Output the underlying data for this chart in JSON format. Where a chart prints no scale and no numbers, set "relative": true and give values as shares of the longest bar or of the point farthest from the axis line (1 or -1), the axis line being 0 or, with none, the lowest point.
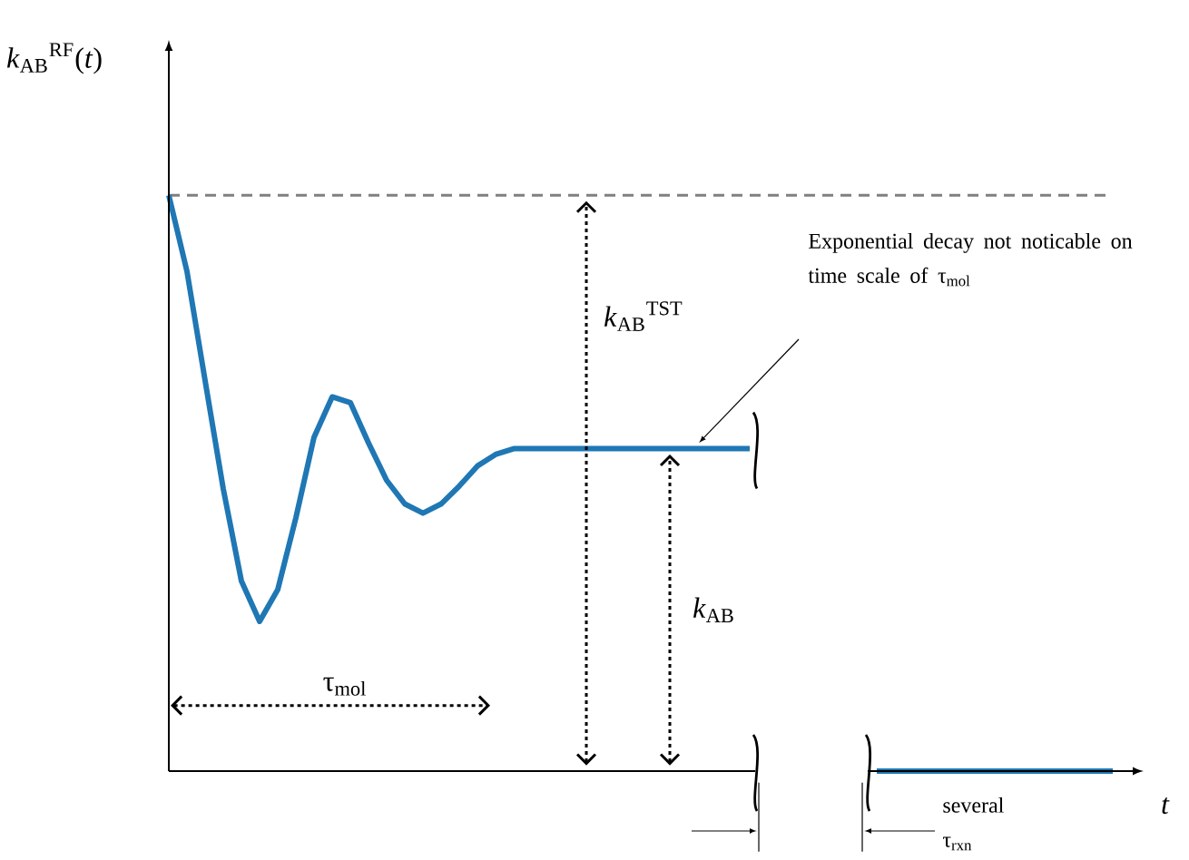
{
  "chart_data": {
    "type": "line",
    "relative": true,
    "xlabel": "*t*",
    "ylabel": "*k*$_{AB}$$^{RF}$(*t*)",
    "categories": [
      null,
      null,
      null,
      null,
      null,
      null,
      null,
      null,
      null,
      null,
      null,
      null,
      null,
      null,
      null,
      null,
      null,
      null,
      null,
      null,
      null,
      null,
      null,
      null,
      null,
      null,
      null,
      null,
      null,
      null,
      null,
      null,
      null,
      null,
      null,
      null,
      null,
      null,
      null,
      null,
      null,
      null,
      null,
      null,
      null,
      null,
      null,
      null,
      null,
      null,
      null,
      null,
      null
    ],
    "series": [
      {
        "color": "#1f77b4",
        "values": [
          1.0,
          0.868,
          0.678,
          0.49,
          0.33,
          0.26,
          0.315,
          0.44,
          0.58,
          0.65,
          0.64,
          0.57,
          0.505,
          0.464,
          0.448,
          0.464,
          0.495,
          0.53,
          0.55,
          0.56,
          0.56,
          0.56,
          0.56,
          0.56,
          0.56,
          0.56,
          0.56,
          0.56,
          0.56,
          0.56,
          0.56,
          0.56,
          0.56,
          null,
          null,
          null,
          null,
          null,
          null,
          null,
          null,
          null,
          null,
          null,
          null,
          null,
          null,
          null,
          null,
          null,
          null,
          null,
          null
        ]
      },
      {
        "color": "#1f77b4",
        "values": [
          null,
          null,
          null,
          null,
          null,
          null,
          null,
          null,
          null,
          null,
          null,
          null,
          null,
          null,
          null,
          null,
          null,
          null,
          null,
          null,
          null,
          null,
          null,
          null,
          null,
          null,
          null,
          null,
          null,
          null,
          null,
          null,
          null,
          null,
          null,
          null,
          null,
          null,
          null,
          0,
          0,
          0,
          0,
          0,
          0,
          0,
          0,
          0,
          0,
          0,
          0,
          0,
          0
        ]
      }
    ],
    "ref_lines": [
      {
        "axis": "y",
        "value": 1,
        "color": "#808080",
        "line_style": "dashed"
      }
    ],
    "annotations": [
      "*k*$_{AB}$$^{TST}$",
      "*k*$_{AB}$",
      "τ$_{mol}$",
      "Exponential decay not noticable on time scale of τ$_{mol}$",
      "several τ$_{rxn}$"
    ]
  }
}
